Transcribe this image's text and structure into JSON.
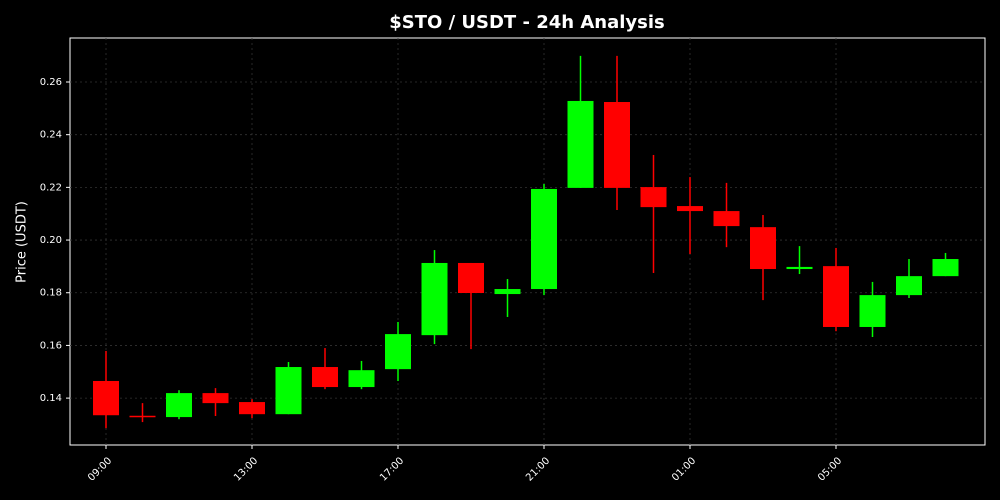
{
  "chart_data": {
    "type": "candlestick",
    "title": "$STO / USDT - 24h Analysis",
    "y_label": "Price (USDT)",
    "categories": [
      "09:00",
      null,
      null,
      null,
      "13:00",
      null,
      null,
      null,
      "17:00",
      null,
      null,
      null,
      "21:00",
      null,
      null,
      null,
      "01:00",
      null,
      null,
      null,
      "05:00",
      null,
      null,
      null
    ],
    "open": [
      0.1465,
      0.1333,
      0.1328,
      0.1419,
      0.1385,
      0.1339,
      0.1518,
      0.1442,
      0.151,
      0.1639,
      0.1913,
      0.1795,
      0.1814,
      0.2198,
      0.2524,
      0.2201,
      0.2129,
      0.211,
      0.2049,
      0.189,
      0.1901,
      0.167,
      0.1791,
      0.1863
    ],
    "high": [
      0.1579,
      0.1381,
      0.143,
      0.1438,
      0.1396,
      0.1537,
      0.159,
      0.1541,
      0.1689,
      0.1962,
      0.1913,
      0.1852,
      0.2213,
      0.2699,
      0.2699,
      0.2323,
      0.2239,
      0.2217,
      0.2095,
      0.1977,
      0.197,
      0.1841,
      0.1928,
      0.1951
    ],
    "low": [
      0.1286,
      0.1309,
      0.132,
      0.1332,
      0.1324,
      0.1339,
      0.1434,
      0.1434,
      0.1465,
      0.1605,
      0.1586,
      0.1708,
      0.1791,
      0.2198,
      0.2114,
      0.1875,
      0.1947,
      0.1973,
      0.1772,
      0.1871,
      0.1654,
      0.1632,
      0.178,
      0.1863
    ],
    "close": [
      0.1335,
      0.1331,
      0.1419,
      0.1381,
      0.1339,
      0.1518,
      0.1442,
      0.1506,
      0.1643,
      0.1913,
      0.1799,
      0.1814,
      0.2194,
      0.2528,
      0.2198,
      0.2125,
      0.211,
      0.2053,
      0.189,
      0.1898,
      0.167,
      0.1791,
      0.1863,
      0.1928
    ],
    "up_color": "#00ff00",
    "down_color": "#ff0000",
    "ylim": [
      0.1222,
      0.2767
    ],
    "yticks": [
      0.14,
      0.16,
      0.18,
      {
        "value": 0.2,
        "label": "0.20"
      },
      0.22,
      0.24,
      0.26
    ],
    "grid": true
  }
}
